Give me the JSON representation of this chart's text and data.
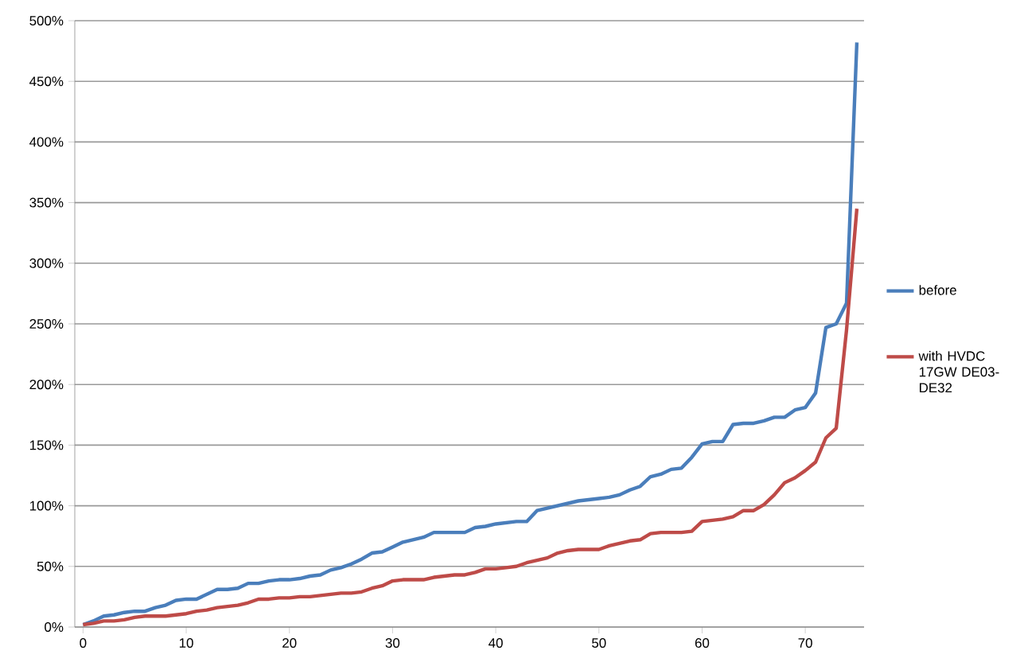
{
  "chart_data": {
    "type": "line",
    "x": [
      0,
      1,
      2,
      3,
      4,
      5,
      6,
      7,
      8,
      9,
      10,
      11,
      12,
      13,
      14,
      15,
      16,
      17,
      18,
      19,
      20,
      21,
      22,
      23,
      24,
      25,
      26,
      27,
      28,
      29,
      30,
      31,
      32,
      33,
      34,
      35,
      36,
      37,
      38,
      39,
      40,
      41,
      42,
      43,
      44,
      45,
      46,
      47,
      48,
      49,
      50,
      51,
      52,
      53,
      54,
      55,
      56,
      57,
      58,
      59,
      60,
      61,
      62,
      63,
      64,
      65,
      66,
      67,
      68,
      69,
      70,
      71,
      72,
      73,
      74,
      75
    ],
    "series": [
      {
        "name": "before",
        "color": "#4a7ebb",
        "values": [
          2,
          5,
          9,
          10,
          12,
          13,
          13,
          16,
          18,
          22,
          23,
          23,
          27,
          31,
          31,
          32,
          36,
          36,
          38,
          39,
          39,
          40,
          42,
          43,
          47,
          49,
          52,
          56,
          61,
          62,
          66,
          70,
          72,
          74,
          78,
          78,
          78,
          78,
          82,
          83,
          85,
          86,
          87,
          87,
          96,
          98,
          100,
          102,
          104,
          105,
          106,
          107,
          109,
          113,
          116,
          124,
          126,
          130,
          131,
          140,
          151,
          153,
          153,
          167,
          168,
          168,
          170,
          173,
          173,
          179,
          181,
          193,
          247,
          250,
          267,
          482
        ]
      },
      {
        "name": "with HVDC 17GW DE03-DE32",
        "color": "#be4b48",
        "values": [
          2,
          3,
          5,
          5,
          6,
          8,
          9,
          9,
          9,
          10,
          11,
          13,
          14,
          16,
          17,
          18,
          20,
          23,
          23,
          24,
          24,
          25,
          25,
          26,
          27,
          28,
          28,
          29,
          32,
          34,
          38,
          39,
          39,
          39,
          41,
          42,
          43,
          43,
          45,
          48,
          48,
          49,
          50,
          53,
          55,
          57,
          61,
          63,
          64,
          64,
          64,
          67,
          69,
          71,
          72,
          77,
          78,
          78,
          78,
          79,
          87,
          88,
          89,
          91,
          96,
          96,
          101,
          109,
          119,
          123,
          129,
          136,
          156,
          164,
          245,
          345
        ]
      }
    ],
    "xlim": [
      -0.8,
      75.7
    ],
    "ylim": [
      0,
      500
    ],
    "xticks": [
      0,
      10,
      20,
      30,
      40,
      50,
      60,
      70
    ],
    "yticks": [
      {
        "value": 0,
        "label": "0%"
      },
      {
        "value": 50,
        "label": "50%"
      },
      {
        "value": 100,
        "label": "100%"
      },
      {
        "value": 150,
        "label": "150%"
      },
      {
        "value": 200,
        "label": "200%"
      },
      {
        "value": 250,
        "label": "250%"
      },
      {
        "value": 300,
        "label": "300%"
      },
      {
        "value": 350,
        "label": "350%"
      },
      {
        "value": 400,
        "label": "400%"
      },
      {
        "value": 450,
        "label": "450%"
      },
      {
        "value": 500,
        "label": "500%"
      }
    ],
    "grid": "y",
    "legend": "right",
    "marker": "none",
    "line_style": "solid"
  }
}
